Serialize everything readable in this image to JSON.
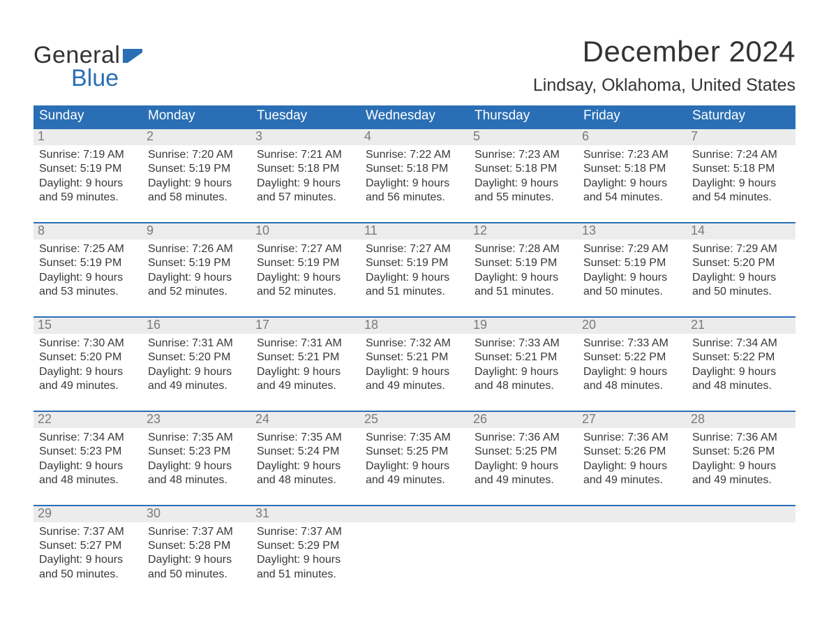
{
  "brand": {
    "word1": "General",
    "word2": "Blue",
    "flag_color": "#2a6fb5"
  },
  "title": "December 2024",
  "location": "Lindsay, Oklahoma, United States",
  "colors": {
    "header_bg": "#2a6fb5",
    "header_text": "#ffffff",
    "daynum_bg": "#ececec",
    "daynum_text": "#7a7a7a",
    "body_text": "#383838",
    "week_border": "#2a6fb5",
    "page_bg": "#ffffff"
  },
  "typography": {
    "title_fontsize": 42,
    "location_fontsize": 25,
    "dayheader_fontsize": 19,
    "daynum_fontsize": 18,
    "body_fontsize": 16
  },
  "day_headers": [
    "Sunday",
    "Monday",
    "Tuesday",
    "Wednesday",
    "Thursday",
    "Friday",
    "Saturday"
  ],
  "weeks": [
    [
      {
        "n": "1",
        "sunrise": "Sunrise: 7:19 AM",
        "sunset": "Sunset: 5:19 PM",
        "d1": "Daylight: 9 hours",
        "d2": "and 59 minutes."
      },
      {
        "n": "2",
        "sunrise": "Sunrise: 7:20 AM",
        "sunset": "Sunset: 5:19 PM",
        "d1": "Daylight: 9 hours",
        "d2": "and 58 minutes."
      },
      {
        "n": "3",
        "sunrise": "Sunrise: 7:21 AM",
        "sunset": "Sunset: 5:18 PM",
        "d1": "Daylight: 9 hours",
        "d2": "and 57 minutes."
      },
      {
        "n": "4",
        "sunrise": "Sunrise: 7:22 AM",
        "sunset": "Sunset: 5:18 PM",
        "d1": "Daylight: 9 hours",
        "d2": "and 56 minutes."
      },
      {
        "n": "5",
        "sunrise": "Sunrise: 7:23 AM",
        "sunset": "Sunset: 5:18 PM",
        "d1": "Daylight: 9 hours",
        "d2": "and 55 minutes."
      },
      {
        "n": "6",
        "sunrise": "Sunrise: 7:23 AM",
        "sunset": "Sunset: 5:18 PM",
        "d1": "Daylight: 9 hours",
        "d2": "and 54 minutes."
      },
      {
        "n": "7",
        "sunrise": "Sunrise: 7:24 AM",
        "sunset": "Sunset: 5:18 PM",
        "d1": "Daylight: 9 hours",
        "d2": "and 54 minutes."
      }
    ],
    [
      {
        "n": "8",
        "sunrise": "Sunrise: 7:25 AM",
        "sunset": "Sunset: 5:19 PM",
        "d1": "Daylight: 9 hours",
        "d2": "and 53 minutes."
      },
      {
        "n": "9",
        "sunrise": "Sunrise: 7:26 AM",
        "sunset": "Sunset: 5:19 PM",
        "d1": "Daylight: 9 hours",
        "d2": "and 52 minutes."
      },
      {
        "n": "10",
        "sunrise": "Sunrise: 7:27 AM",
        "sunset": "Sunset: 5:19 PM",
        "d1": "Daylight: 9 hours",
        "d2": "and 52 minutes."
      },
      {
        "n": "11",
        "sunrise": "Sunrise: 7:27 AM",
        "sunset": "Sunset: 5:19 PM",
        "d1": "Daylight: 9 hours",
        "d2": "and 51 minutes."
      },
      {
        "n": "12",
        "sunrise": "Sunrise: 7:28 AM",
        "sunset": "Sunset: 5:19 PM",
        "d1": "Daylight: 9 hours",
        "d2": "and 51 minutes."
      },
      {
        "n": "13",
        "sunrise": "Sunrise: 7:29 AM",
        "sunset": "Sunset: 5:19 PM",
        "d1": "Daylight: 9 hours",
        "d2": "and 50 minutes."
      },
      {
        "n": "14",
        "sunrise": "Sunrise: 7:29 AM",
        "sunset": "Sunset: 5:20 PM",
        "d1": "Daylight: 9 hours",
        "d2": "and 50 minutes."
      }
    ],
    [
      {
        "n": "15",
        "sunrise": "Sunrise: 7:30 AM",
        "sunset": "Sunset: 5:20 PM",
        "d1": "Daylight: 9 hours",
        "d2": "and 49 minutes."
      },
      {
        "n": "16",
        "sunrise": "Sunrise: 7:31 AM",
        "sunset": "Sunset: 5:20 PM",
        "d1": "Daylight: 9 hours",
        "d2": "and 49 minutes."
      },
      {
        "n": "17",
        "sunrise": "Sunrise: 7:31 AM",
        "sunset": "Sunset: 5:21 PM",
        "d1": "Daylight: 9 hours",
        "d2": "and 49 minutes."
      },
      {
        "n": "18",
        "sunrise": "Sunrise: 7:32 AM",
        "sunset": "Sunset: 5:21 PM",
        "d1": "Daylight: 9 hours",
        "d2": "and 49 minutes."
      },
      {
        "n": "19",
        "sunrise": "Sunrise: 7:33 AM",
        "sunset": "Sunset: 5:21 PM",
        "d1": "Daylight: 9 hours",
        "d2": "and 48 minutes."
      },
      {
        "n": "20",
        "sunrise": "Sunrise: 7:33 AM",
        "sunset": "Sunset: 5:22 PM",
        "d1": "Daylight: 9 hours",
        "d2": "and 48 minutes."
      },
      {
        "n": "21",
        "sunrise": "Sunrise: 7:34 AM",
        "sunset": "Sunset: 5:22 PM",
        "d1": "Daylight: 9 hours",
        "d2": "and 48 minutes."
      }
    ],
    [
      {
        "n": "22",
        "sunrise": "Sunrise: 7:34 AM",
        "sunset": "Sunset: 5:23 PM",
        "d1": "Daylight: 9 hours",
        "d2": "and 48 minutes."
      },
      {
        "n": "23",
        "sunrise": "Sunrise: 7:35 AM",
        "sunset": "Sunset: 5:23 PM",
        "d1": "Daylight: 9 hours",
        "d2": "and 48 minutes."
      },
      {
        "n": "24",
        "sunrise": "Sunrise: 7:35 AM",
        "sunset": "Sunset: 5:24 PM",
        "d1": "Daylight: 9 hours",
        "d2": "and 48 minutes."
      },
      {
        "n": "25",
        "sunrise": "Sunrise: 7:35 AM",
        "sunset": "Sunset: 5:25 PM",
        "d1": "Daylight: 9 hours",
        "d2": "and 49 minutes."
      },
      {
        "n": "26",
        "sunrise": "Sunrise: 7:36 AM",
        "sunset": "Sunset: 5:25 PM",
        "d1": "Daylight: 9 hours",
        "d2": "and 49 minutes."
      },
      {
        "n": "27",
        "sunrise": "Sunrise: 7:36 AM",
        "sunset": "Sunset: 5:26 PM",
        "d1": "Daylight: 9 hours",
        "d2": "and 49 minutes."
      },
      {
        "n": "28",
        "sunrise": "Sunrise: 7:36 AM",
        "sunset": "Sunset: 5:26 PM",
        "d1": "Daylight: 9 hours",
        "d2": "and 49 minutes."
      }
    ],
    [
      {
        "n": "29",
        "sunrise": "Sunrise: 7:37 AM",
        "sunset": "Sunset: 5:27 PM",
        "d1": "Daylight: 9 hours",
        "d2": "and 50 minutes."
      },
      {
        "n": "30",
        "sunrise": "Sunrise: 7:37 AM",
        "sunset": "Sunset: 5:28 PM",
        "d1": "Daylight: 9 hours",
        "d2": "and 50 minutes."
      },
      {
        "n": "31",
        "sunrise": "Sunrise: 7:37 AM",
        "sunset": "Sunset: 5:29 PM",
        "d1": "Daylight: 9 hours",
        "d2": "and 51 minutes."
      },
      null,
      null,
      null,
      null
    ]
  ]
}
